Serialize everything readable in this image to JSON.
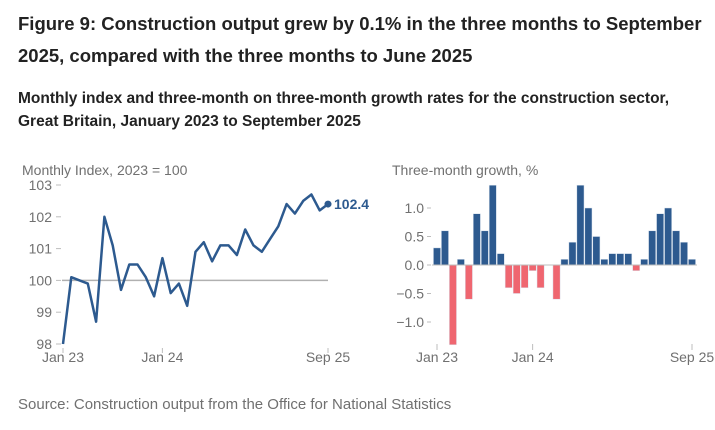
{
  "title": "Figure 9: Construction output grew by 0.1% in the three months to September 2025, compared with the three months to June 2025",
  "subtitle": "Monthly index and three-month on three-month growth rates for the construction sector, Great Britain, January 2023 to September 2025",
  "source": "Source: Construction output from the Office for National Statistics",
  "colors": {
    "line": "#2d5a8f",
    "positive": "#2d5a8f",
    "negative": "#ef6670",
    "axis": "#bdbdbd",
    "text": "#707070"
  },
  "chart_data": [
    {
      "type": "line",
      "ylabel": "Monthly Index, 2023 = 100",
      "ylim": [
        98,
        103
      ],
      "yticks": [
        "98",
        "99",
        "100",
        "101",
        "102",
        "103"
      ],
      "xtick_labels": [
        "Jan 23",
        "Jan 24",
        "Sep 25"
      ],
      "reference_line": 100,
      "end_label": "102.4",
      "x": [
        "2023-01",
        "2023-02",
        "2023-03",
        "2023-04",
        "2023-05",
        "2023-06",
        "2023-07",
        "2023-08",
        "2023-09",
        "2023-10",
        "2023-11",
        "2023-12",
        "2024-01",
        "2024-02",
        "2024-03",
        "2024-04",
        "2024-05",
        "2024-06",
        "2024-07",
        "2024-08",
        "2024-09",
        "2024-10",
        "2024-11",
        "2024-12",
        "2025-01",
        "2025-02",
        "2025-03",
        "2025-04",
        "2025-05",
        "2025-06",
        "2025-07",
        "2025-08",
        "2025-09"
      ],
      "values": [
        98.0,
        100.1,
        100.0,
        99.9,
        98.7,
        102.0,
        101.1,
        99.7,
        100.5,
        100.5,
        100.1,
        99.5,
        100.7,
        99.6,
        99.9,
        99.2,
        100.9,
        101.2,
        100.6,
        101.1,
        101.1,
        100.8,
        101.6,
        101.1,
        100.9,
        101.3,
        101.7,
        102.4,
        102.1,
        102.5,
        102.7,
        102.2,
        102.4
      ]
    },
    {
      "type": "bar",
      "ylabel": "Three-month growth, %",
      "ylim": [
        -1.4,
        1.4
      ],
      "yticks": [
        "−1.0",
        "−0.5",
        "0.0",
        "0.5",
        "1.0"
      ],
      "xtick_labels": [
        "Jan 23",
        "Jan 24",
        "Sep 25"
      ],
      "x": [
        "2023-01",
        "2023-02",
        "2023-03",
        "2023-04",
        "2023-05",
        "2023-06",
        "2023-07",
        "2023-08",
        "2023-09",
        "2023-10",
        "2023-11",
        "2023-12",
        "2024-01",
        "2024-02",
        "2024-03",
        "2024-04",
        "2024-05",
        "2024-06",
        "2024-07",
        "2024-08",
        "2024-09",
        "2024-10",
        "2024-11",
        "2024-12",
        "2025-01",
        "2025-02",
        "2025-03",
        "2025-04",
        "2025-05",
        "2025-06",
        "2025-07",
        "2025-08",
        "2025-09"
      ],
      "values": [
        0.3,
        0.6,
        -1.4,
        0.1,
        -0.6,
        0.9,
        0.6,
        1.4,
        0.2,
        -0.4,
        -0.5,
        -0.4,
        -0.1,
        -0.4,
        0.0,
        -0.6,
        0.1,
        0.4,
        1.4,
        1.0,
        0.5,
        0.1,
        0.2,
        0.2,
        0.2,
        -0.1,
        0.1,
        0.6,
        0.9,
        1.0,
        0.6,
        0.4,
        0.1
      ]
    }
  ]
}
